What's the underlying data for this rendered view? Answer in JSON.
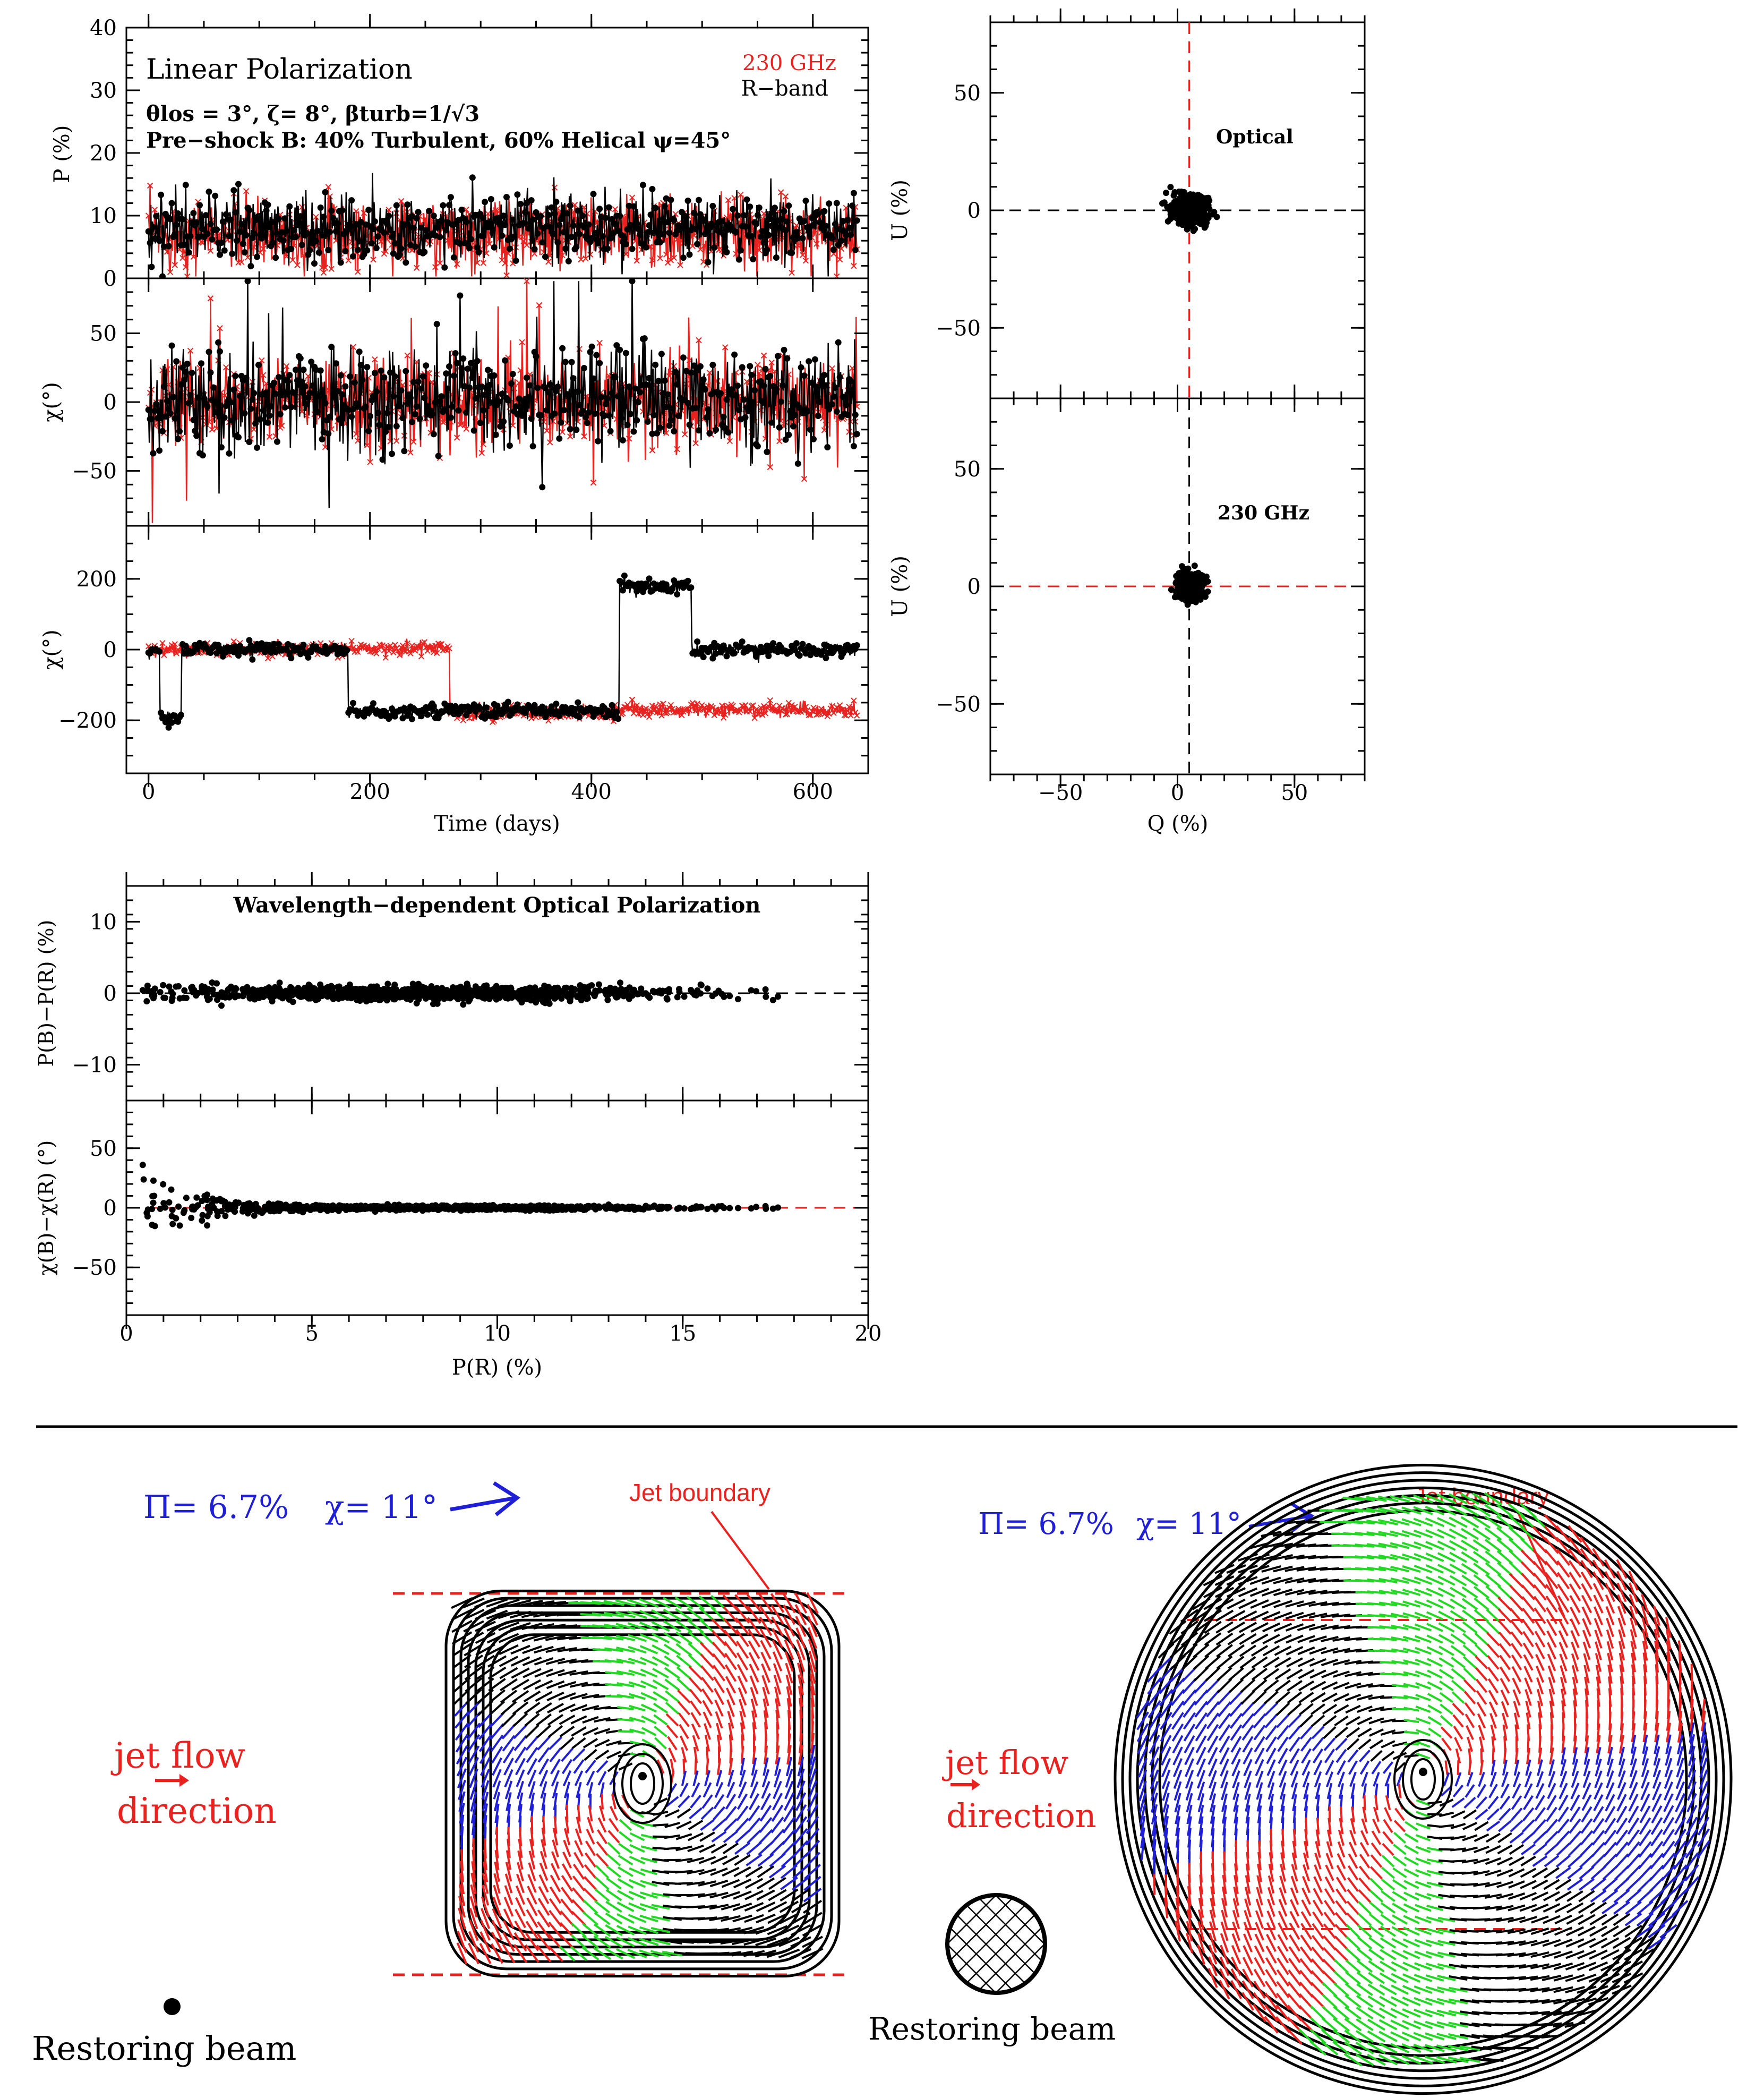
{
  "colors": {
    "red": "#e8231f",
    "black": "#000000",
    "blue": "#1f1fd6",
    "green": "#22d822"
  },
  "panel_lp": {
    "title": "Linear Polarization",
    "legend_red": "230 GHz",
    "legend_black": "R−band",
    "params": "θlos = 3°, ζ= 8°, βturb=1/√3",
    "preshock": "Pre−shock B: 40% Turbulent, 60% Helical ψ=45°"
  },
  "panel_qu": {
    "label_top": "Optical",
    "label_bottom": "230 GHz"
  },
  "panel_wave": {
    "title": "Wavelength−dependent Optical Polarization"
  },
  "bottom": {
    "left": {
      "pi_text": "Π= 6.7%",
      "chi_text": "χ= 11°",
      "jet_boundary": "Jet boundary",
      "flow1": "jet flow",
      "flow2": "direction",
      "beam": "Restoring beam"
    },
    "right": {
      "pi_text": "Π= 6.7%",
      "chi_text": "χ= 11°",
      "jet_boundary": "Jet boundary",
      "flow1": "jet flow",
      "flow2": "direction",
      "beam": "Restoring beam"
    }
  },
  "chart_data": [
    {
      "type": "scatter",
      "title": "Linear Polarization",
      "xlabel": "",
      "ylabel": "P (%)",
      "xlim": [
        -20,
        650
      ],
      "ylim": [
        0,
        40
      ],
      "yticks": [
        0,
        10,
        20,
        30,
        40
      ],
      "ytick_labels": [
        "0",
        "10",
        "20",
        "30",
        "40"
      ],
      "series": [
        {
          "name": "230 GHz",
          "color": "red",
          "mean": 7,
          "spread": 5
        },
        {
          "name": "R−band",
          "color": "black",
          "mean": 8,
          "spread": 5.5
        }
      ]
    },
    {
      "type": "scatter",
      "xlabel": "",
      "ylabel": "χ(°)",
      "xlim": [
        -20,
        650
      ],
      "ylim": [
        -90,
        90
      ],
      "yticks": [
        -50,
        0,
        50
      ],
      "ytick_labels": [
        "−50",
        "0",
        "50"
      ],
      "series": [
        {
          "name": "230 GHz",
          "color": "red",
          "mean": 0,
          "spread": 15
        },
        {
          "name": "R−band",
          "color": "black",
          "mean": 0,
          "spread": 18
        }
      ]
    },
    {
      "type": "scatter",
      "xlabel": "Time (days)",
      "ylabel": "χ(°)",
      "xlim": [
        -20,
        650
      ],
      "ylim": [
        -350,
        350
      ],
      "xticks": [
        0,
        200,
        400,
        600
      ],
      "xtick_labels": [
        "0",
        "200",
        "400",
        "600"
      ],
      "yticks": [
        -200,
        0,
        200
      ],
      "ytick_labels": [
        "−200",
        "0",
        "200"
      ],
      "series": [
        {
          "name": "230 GHz",
          "color": "red",
          "segments": [
            [
              0,
              180,
              0
            ],
            [
              180,
              272,
              5
            ],
            [
              272,
              420,
              -180
            ],
            [
              420,
              640,
              -170
            ]
          ]
        },
        {
          "name": "R−band",
          "color": "black",
          "segments": [
            [
              0,
              10,
              0
            ],
            [
              10,
              30,
              -190
            ],
            [
              30,
              180,
              0
            ],
            [
              180,
              425,
              -175
            ],
            [
              425,
              490,
              180
            ],
            [
              490,
              640,
              0
            ]
          ]
        }
      ]
    },
    {
      "type": "scatter",
      "title": "Optical",
      "xlabel": "",
      "ylabel": "U (%)",
      "xlim": [
        -80,
        80
      ],
      "ylim": [
        -80,
        80
      ],
      "yticks": [
        -50,
        0,
        50
      ],
      "ytick_labels": [
        "−50",
        "0",
        "50"
      ],
      "cluster": {
        "x_center": 5,
        "y_center": 0,
        "x_spread": 7,
        "y_spread": 6
      }
    },
    {
      "type": "scatter",
      "title": "230 GHz",
      "xlabel": "Q (%)",
      "ylabel": "U (%)",
      "xlim": [
        -80,
        80
      ],
      "ylim": [
        -80,
        80
      ],
      "xticks": [
        -50,
        0,
        50
      ],
      "xtick_labels": [
        "−50",
        "0",
        "50"
      ],
      "yticks": [
        -50,
        0,
        50
      ],
      "ytick_labels": [
        "−50",
        "0",
        "50"
      ],
      "cluster": {
        "x_center": 5,
        "y_center": 0,
        "x_spread": 5,
        "y_spread": 5
      }
    },
    {
      "type": "scatter",
      "title": "Wavelength−dependent Optical Polarization",
      "xlabel": "",
      "ylabel": "P(B)−P(R) (%)",
      "xlim": [
        0,
        20
      ],
      "ylim": [
        -15,
        15
      ],
      "yticks": [
        -10,
        0,
        10
      ],
      "ytick_labels": [
        "−10",
        "0",
        "10"
      ],
      "cluster": {
        "x_min": 0.4,
        "x_max": 18,
        "y_spread": 1.2
      }
    },
    {
      "type": "scatter",
      "xlabel": "P(R) (%)",
      "ylabel": "χ(B)−χ(R) (°)",
      "xlim": [
        0,
        20
      ],
      "ylim": [
        -90,
        90
      ],
      "xticks": [
        0,
        5,
        10,
        15,
        20
      ],
      "xtick_labels": [
        "0",
        "5",
        "10",
        "15",
        "20"
      ],
      "yticks": [
        -50,
        0,
        50
      ],
      "ytick_labels": [
        "−50",
        "0",
        "50"
      ],
      "cluster": {
        "x_min": 0.4,
        "x_max": 18,
        "y_spread_low_x": 50,
        "y_spread_high_x": 2
      }
    }
  ]
}
